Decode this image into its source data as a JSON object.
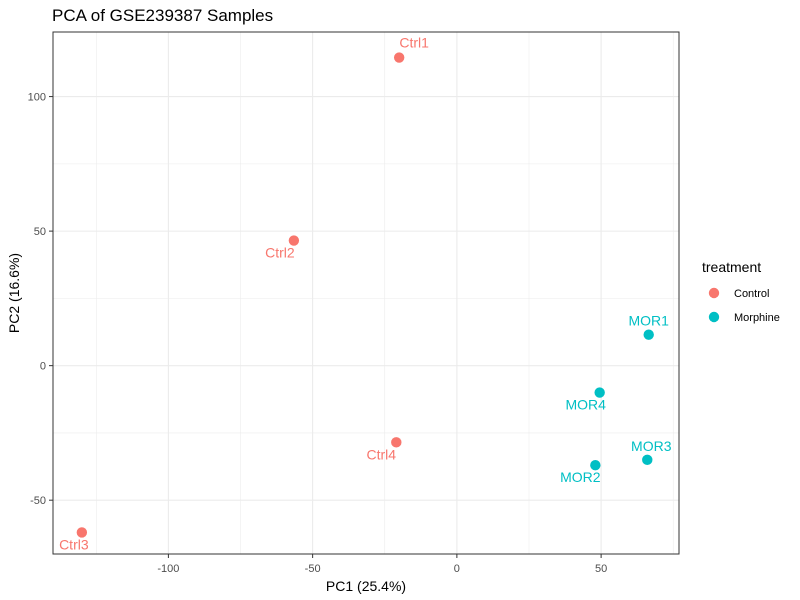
{
  "chart_data": {
    "type": "scatter",
    "title": "PCA of GSE239387 Samples",
    "xlabel": "PC1 (25.4%)",
    "ylabel": "PC2 (16.6%)",
    "xlim": [
      -140,
      77
    ],
    "ylim": [
      -70,
      124
    ],
    "xticks": [
      -100,
      -50,
      0,
      50
    ],
    "yticks": [
      -50,
      0,
      50,
      100
    ],
    "grid": true,
    "legend": {
      "title": "treatment",
      "position": "right",
      "entries": [
        {
          "name": "Control",
          "color": "#F8766D"
        },
        {
          "name": "Morphine",
          "color": "#00BFC4"
        }
      ]
    },
    "points": [
      {
        "label": "Ctrl1",
        "x": -20,
        "y": 114.5,
        "group": "Control"
      },
      {
        "label": "Ctrl2",
        "x": -56.5,
        "y": 46.5,
        "group": "Control"
      },
      {
        "label": "Ctrl3",
        "x": -130,
        "y": -62,
        "group": "Control"
      },
      {
        "label": "Ctrl4",
        "x": -21,
        "y": -28.5,
        "group": "Control"
      },
      {
        "label": "MOR1",
        "x": 66.5,
        "y": 11.5,
        "group": "Morphine"
      },
      {
        "label": "MOR2",
        "x": 48,
        "y": -37,
        "group": "Morphine"
      },
      {
        "label": "MOR3",
        "x": 66,
        "y": -35,
        "group": "Morphine"
      },
      {
        "label": "MOR4",
        "x": 49.5,
        "y": -10,
        "group": "Morphine"
      }
    ]
  }
}
